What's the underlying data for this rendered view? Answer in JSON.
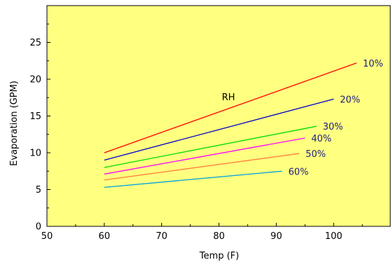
{
  "colors": {
    "plot_background": "#ffff80",
    "axis": "#000000",
    "text_tick": "#000000",
    "text_series": "#202080"
  },
  "chart_data": {
    "type": "line",
    "title": "",
    "xlabel": "Temp (F)",
    "ylabel": "Evaporation (GPM)",
    "annotation": "RH",
    "xlim": [
      50,
      110
    ],
    "ylim": [
      0,
      30
    ],
    "x_ticks": [
      "50",
      "60",
      "70",
      "80",
      "90",
      "100"
    ],
    "y_ticks": [
      "0",
      "5",
      "10",
      "15",
      "20",
      "25"
    ],
    "grid": false,
    "legend": "inline-right",
    "series": [
      {
        "name": "10%",
        "color": "#ff0000",
        "x": [
          60,
          104
        ],
        "y": [
          10.0,
          22.2
        ]
      },
      {
        "name": "20%",
        "color": "#0000cc",
        "x": [
          60,
          100
        ],
        "y": [
          9.0,
          17.3
        ]
      },
      {
        "name": "30%",
        "color": "#00dd00",
        "x": [
          60,
          97
        ],
        "y": [
          8.0,
          13.6
        ]
      },
      {
        "name": "40%",
        "color": "#ff00ff",
        "x": [
          60,
          95
        ],
        "y": [
          7.1,
          12.0
        ]
      },
      {
        "name": "50%",
        "color": "#ff8040",
        "x": [
          60,
          94
        ],
        "y": [
          6.3,
          9.9
        ]
      },
      {
        "name": "60%",
        "color": "#00a0e0",
        "x": [
          60,
          91
        ],
        "y": [
          5.3,
          7.5
        ]
      }
    ]
  }
}
